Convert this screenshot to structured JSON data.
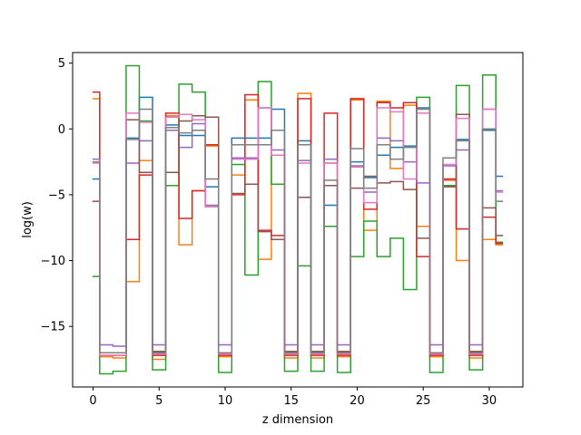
{
  "chart_data": {
    "type": "line",
    "step": "mid",
    "xlabel": "z dimension",
    "ylabel": "log(w)",
    "xlim": [
      -1.55,
      32.55
    ],
    "ylim": [
      -19.6,
      5.8
    ],
    "xticks": [
      0,
      5,
      10,
      15,
      20,
      25,
      30
    ],
    "yticks": [
      5,
      0,
      -5,
      -10,
      -15
    ],
    "ytick_labels": [
      "5",
      "0",
      "−5",
      "−10",
      "−15"
    ],
    "x": [
      0,
      1,
      2,
      3,
      4,
      5,
      6,
      7,
      8,
      9,
      10,
      11,
      12,
      13,
      14,
      15,
      16,
      17,
      18,
      19,
      20,
      21,
      22,
      23,
      24,
      25,
      26,
      27,
      28,
      29,
      30,
      31
    ],
    "series": [
      {
        "color": "#1f77b4",
        "values": [
          -3.8,
          -17.0,
          -17.0,
          -0.7,
          2.4,
          -17.0,
          0.3,
          -0.5,
          -0.5,
          -4.4,
          -17.0,
          -0.7,
          -0.7,
          -0.7,
          1.5,
          -17.0,
          -0.9,
          -17.0,
          -5.8,
          -17.0,
          -2.5,
          -3.7,
          -2.0,
          -1.4,
          -1.3,
          1.6,
          -17.0,
          -3.9,
          -0.8,
          -17.0,
          -0.1,
          -3.6
        ]
      },
      {
        "color": "#ff7f0e",
        "values": [
          2.3,
          -17.3,
          -17.4,
          -11.6,
          -2.4,
          -17.5,
          1.0,
          -8.8,
          -4.7,
          -1.3,
          -17.3,
          -3.5,
          2.2,
          -9.9,
          -2.0,
          -17.4,
          2.7,
          -17.4,
          -2.6,
          -17.3,
          2.2,
          -7.7,
          2.1,
          -3.0,
          1.8,
          -7.4,
          -17.3,
          -3.9,
          -10.0,
          -17.4,
          -8.4,
          -8.8
        ]
      },
      {
        "color": "#2ca02c",
        "values": [
          -11.2,
          -18.6,
          -18.4,
          4.8,
          0.6,
          -18.3,
          -4.3,
          3.4,
          2.8,
          -5.9,
          -18.5,
          -2.7,
          -11.1,
          3.6,
          -4.2,
          -18.4,
          -10.4,
          -18.4,
          -7.4,
          -18.5,
          -9.7,
          -7.0,
          -9.7,
          -8.3,
          -12.2,
          2.4,
          -18.5,
          -4.3,
          3.3,
          -18.3,
          4.1,
          -8.6
        ]
      },
      {
        "color": "#d62728",
        "values": [
          2.8,
          -17.2,
          -17.2,
          -8.4,
          -3.5,
          -17.2,
          1.2,
          -6.8,
          -4.7,
          -1.2,
          -17.2,
          -5.0,
          2.6,
          -7.7,
          -8.1,
          -17.2,
          2.3,
          -17.2,
          1.2,
          -17.2,
          2.3,
          -6.1,
          2.0,
          1.6,
          2.0,
          -9.7,
          -17.2,
          -3.8,
          -7.6,
          -17.2,
          -6.7,
          -8.7
        ]
      },
      {
        "color": "#9467bd",
        "values": [
          -2.3,
          -16.4,
          -16.5,
          -2.6,
          -0.9,
          -16.4,
          -0.1,
          -1.4,
          0.4,
          -5.8,
          -16.4,
          -2.2,
          -2.2,
          1.6,
          -1.6,
          -16.4,
          -2.4,
          -16.4,
          -2.3,
          -16.4,
          -2.8,
          -4.8,
          -0.7,
          -0.9,
          -2.5,
          -4.1,
          -16.4,
          -2.8,
          -1.6,
          -16.4,
          1.5,
          -4.7
        ]
      },
      {
        "color": "#8c564b",
        "values": [
          -5.5,
          -17.0,
          -17.0,
          0.7,
          -3.3,
          -16.9,
          -3.3,
          0.6,
          1.0,
          0.9,
          -17.0,
          -4.9,
          -4.2,
          -7.8,
          -8.4,
          -16.9,
          -5.2,
          -16.9,
          -4.3,
          -16.9,
          -4.5,
          -3.6,
          -4.1,
          -4.0,
          -4.6,
          -8.3,
          -17.0,
          -4.4,
          1.1,
          -16.9,
          -6.0,
          -8.1
        ]
      },
      {
        "color": "#e377c2",
        "values": [
          -2.6,
          -17.2,
          -17.2,
          1.2,
          0.5,
          -17.1,
          0.9,
          1.1,
          0.7,
          -5.9,
          -17.1,
          -2.3,
          -2.3,
          1.6,
          -2.0,
          -17.1,
          -2.6,
          -17.1,
          -2.6,
          -17.1,
          -2.9,
          -5.6,
          1.6,
          1.3,
          -3.8,
          1.2,
          -17.1,
          -2.7,
          0.8,
          -17.1,
          1.5,
          -4.8
        ]
      },
      {
        "color": "#7f7f7f",
        "values": [
          -2.5,
          -17.0,
          -17.0,
          -0.8,
          1.5,
          -17.0,
          0.1,
          -0.3,
          -0.1,
          -3.8,
          -17.0,
          -1.2,
          -1.2,
          -1.2,
          -0.1,
          -17.0,
          -1.2,
          -17.0,
          -3.9,
          -17.0,
          -1.5,
          -4.5,
          -1.2,
          -2.3,
          -1.4,
          1.5,
          -17.0,
          -2.2,
          -0.9,
          -17.0,
          0.0,
          -5.5
        ]
      }
    ]
  }
}
